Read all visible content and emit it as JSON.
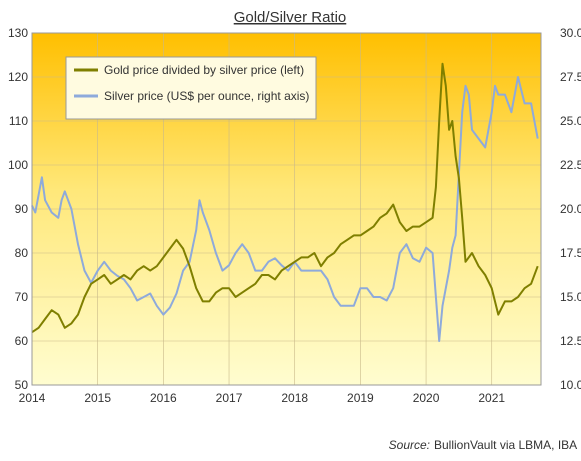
{
  "chart_data": {
    "type": "line",
    "title": "Gold/Silver Ratio",
    "source_label": "Source:",
    "source_text": "BullionVault via LBMA, IBA",
    "x_ticks": [
      "2014",
      "2015",
      "2016",
      "2017",
      "2018",
      "2019",
      "2020",
      "2021"
    ],
    "xlim": [
      2014.0,
      2021.75
    ],
    "y_left": {
      "ylim": [
        50,
        130
      ],
      "ticks": [
        "50",
        "60",
        "70",
        "80",
        "90",
        "100",
        "110",
        "120",
        "130"
      ]
    },
    "y_right": {
      "ylim": [
        10.0,
        30.0
      ],
      "ticks": [
        "10.00",
        "12.50",
        "15.00",
        "17.50",
        "20.00",
        "22.50",
        "25.00",
        "27.50",
        "30.00"
      ]
    },
    "grid": true,
    "legend_position": "top-left",
    "series": [
      {
        "name": "Gold price divided by silver price (left)",
        "axis": "left",
        "color": "#7f7f00",
        "x": [
          2014.0,
          2014.1,
          2014.2,
          2014.3,
          2014.4,
          2014.5,
          2014.6,
          2014.7,
          2014.8,
          2014.9,
          2015.0,
          2015.1,
          2015.2,
          2015.3,
          2015.4,
          2015.5,
          2015.6,
          2015.7,
          2015.8,
          2015.9,
          2016.0,
          2016.1,
          2016.2,
          2016.3,
          2016.4,
          2016.5,
          2016.6,
          2016.7,
          2016.8,
          2016.9,
          2017.0,
          2017.1,
          2017.2,
          2017.3,
          2017.4,
          2017.5,
          2017.6,
          2017.7,
          2017.8,
          2017.9,
          2018.0,
          2018.1,
          2018.2,
          2018.3,
          2018.4,
          2018.5,
          2018.6,
          2018.7,
          2018.8,
          2018.9,
          2019.0,
          2019.1,
          2019.2,
          2019.3,
          2019.4,
          2019.5,
          2019.6,
          2019.7,
          2019.8,
          2019.9,
          2020.0,
          2020.1,
          2020.15,
          2020.2,
          2020.25,
          2020.3,
          2020.35,
          2020.4,
          2020.45,
          2020.5,
          2020.55,
          2020.6,
          2020.7,
          2020.8,
          2020.9,
          2021.0,
          2021.1,
          2021.2,
          2021.3,
          2021.4,
          2021.5,
          2021.6,
          2021.7
        ],
        "values": [
          62,
          63,
          65,
          67,
          66,
          63,
          64,
          66,
          70,
          73,
          74,
          75,
          73,
          74,
          75,
          74,
          76,
          77,
          76,
          77,
          79,
          81,
          83,
          81,
          77,
          72,
          69,
          69,
          71,
          72,
          72,
          70,
          71,
          72,
          73,
          75,
          75,
          74,
          76,
          77,
          78,
          79,
          79,
          80,
          77,
          79,
          80,
          82,
          83,
          84,
          84,
          85,
          86,
          88,
          89,
          91,
          87,
          85,
          86,
          86,
          87,
          88,
          95,
          110,
          123,
          118,
          108,
          110,
          102,
          97,
          88,
          78,
          80,
          77,
          75,
          72,
          66,
          69,
          69,
          70,
          72,
          73,
          77
        ]
      },
      {
        "name": "Silver price (US$ per ounce, right axis)",
        "axis": "right",
        "color": "#8eaadb",
        "x": [
          2014.0,
          2014.05,
          2014.1,
          2014.15,
          2014.2,
          2014.3,
          2014.4,
          2014.45,
          2014.5,
          2014.6,
          2014.7,
          2014.8,
          2014.9,
          2015.0,
          2015.1,
          2015.2,
          2015.3,
          2015.4,
          2015.5,
          2015.6,
          2015.7,
          2015.8,
          2015.9,
          2016.0,
          2016.1,
          2016.2,
          2016.3,
          2016.4,
          2016.5,
          2016.55,
          2016.6,
          2016.7,
          2016.8,
          2016.9,
          2017.0,
          2017.1,
          2017.2,
          2017.3,
          2017.4,
          2017.5,
          2017.6,
          2017.7,
          2017.8,
          2017.9,
          2018.0,
          2018.1,
          2018.2,
          2018.3,
          2018.4,
          2018.5,
          2018.6,
          2018.7,
          2018.8,
          2018.9,
          2019.0,
          2019.1,
          2019.2,
          2019.3,
          2019.4,
          2019.5,
          2019.6,
          2019.7,
          2019.8,
          2019.9,
          2020.0,
          2020.1,
          2020.15,
          2020.2,
          2020.25,
          2020.3,
          2020.35,
          2020.4,
          2020.45,
          2020.5,
          2020.55,
          2020.6,
          2020.65,
          2020.7,
          2020.8,
          2020.9,
          2021.0,
          2021.05,
          2021.1,
          2021.2,
          2021.3,
          2021.4,
          2021.5,
          2021.6,
          2021.7
        ],
        "values": [
          20.2,
          19.8,
          20.8,
          21.8,
          20.5,
          19.8,
          19.5,
          20.5,
          21.0,
          20.0,
          18.0,
          16.5,
          15.8,
          16.5,
          17.0,
          16.5,
          16.2,
          16.0,
          15.5,
          14.8,
          15.0,
          15.2,
          14.5,
          14.0,
          14.4,
          15.2,
          16.5,
          17.0,
          18.8,
          20.5,
          19.8,
          18.8,
          17.5,
          16.5,
          16.8,
          17.5,
          18.0,
          17.5,
          16.5,
          16.5,
          17.0,
          17.2,
          16.8,
          16.5,
          17.0,
          16.5,
          16.5,
          16.5,
          16.5,
          16.0,
          15.0,
          14.5,
          14.5,
          14.5,
          15.5,
          15.5,
          15.0,
          15.0,
          14.8,
          15.5,
          17.5,
          18.0,
          17.2,
          17.0,
          17.8,
          17.5,
          15.0,
          12.5,
          14.5,
          15.5,
          16.5,
          17.8,
          18.5,
          22.0,
          25.5,
          27.0,
          26.5,
          24.5,
          24.0,
          23.5,
          25.5,
          27.0,
          26.5,
          26.5,
          25.5,
          27.5,
          26.0,
          26.0,
          24.0
        ]
      }
    ]
  }
}
